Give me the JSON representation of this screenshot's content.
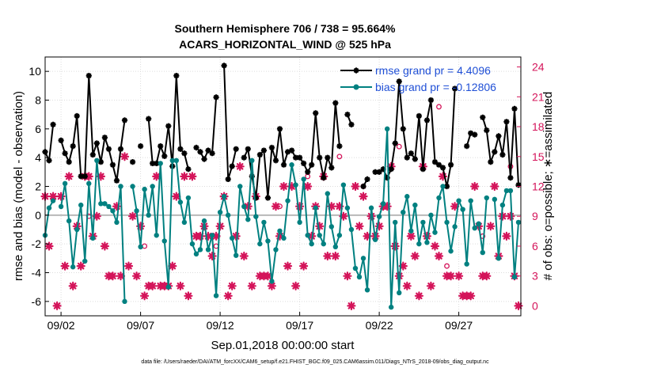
{
  "chart_data": {
    "type": "line",
    "title_line1": "Southern Hemisphere 706 / 738 = 95.664%",
    "title_line2": "ACARS_HORIZONTAL_WIND @ 525 hPa",
    "xlabel": "Sep.01,2018 00:00:00 start",
    "ylabel": "rmse and bias (model - observation)",
    "ylabel_right": "# of obs: o=possible; ∗=assimilated",
    "footnote": "data file: /Users/raeder/DAI/ATM_forcXX/CAM6_setup/f.e21.FHIST_BGC.f09_025.CAM6assim.011/Diags_NTrS_2018-09/obs_diag_output.nc",
    "xlim": [
      1.0,
      30.9
    ],
    "ylim": [
      -7,
      11
    ],
    "ylim_right": [
      -1,
      25
    ],
    "x_ticks": [
      2,
      7,
      12,
      17,
      22,
      27
    ],
    "x_tick_labels": [
      "09/02",
      "09/07",
      "09/12",
      "09/17",
      "09/22",
      "09/27"
    ],
    "y_ticks": [
      -6,
      -4,
      -2,
      0,
      2,
      4,
      6,
      8,
      10
    ],
    "y_tick_labels": [
      "-6",
      "-4",
      "-2",
      "0",
      "2",
      "4",
      "6",
      "8",
      "10"
    ],
    "y2_ticks": [
      0,
      3,
      6,
      9,
      12,
      15,
      18,
      21,
      24
    ],
    "y2_tick_labels": [
      "0",
      "3",
      "6",
      "9",
      "12",
      "15",
      "18",
      "21",
      "24"
    ],
    "zero_line": 0,
    "grid": true,
    "legend_position": "top-right",
    "colors": {
      "rmse": "#000000",
      "bias": "#008080",
      "counts": "#d4145a",
      "legend_text": "#1f4fd6",
      "zero_line": "#b8b8b8",
      "grid": "#dcdcdc"
    },
    "series": [
      {
        "name": "rmse grand pr = 4.4096",
        "color": "#000000",
        "marker": "star",
        "x": [
          1.0,
          1.25,
          1.5,
          1.75,
          2.0,
          2.25,
          2.5,
          2.75,
          3.0,
          3.25,
          3.5,
          3.75,
          4.0,
          4.25,
          4.5,
          4.75,
          5.0,
          5.25,
          5.5,
          5.75,
          6.0,
          6.25,
          6.5,
          6.75,
          7.0,
          7.25,
          7.5,
          7.75,
          8.0,
          8.25,
          8.5,
          8.75,
          9.0,
          9.25,
          9.5,
          9.75,
          10.0,
          10.25,
          10.5,
          10.75,
          11.0,
          11.25,
          11.5,
          11.75,
          12.0,
          12.25,
          12.5,
          12.75,
          13.0,
          13.25,
          13.5,
          13.75,
          14.0,
          14.25,
          14.5,
          14.75,
          15.0,
          15.25,
          15.5,
          15.75,
          16.0,
          16.25,
          16.5,
          16.75,
          17.0,
          17.25,
          17.5,
          17.75,
          18.0,
          18.25,
          18.5,
          18.75,
          19.0,
          19.25,
          19.5,
          19.75,
          20.0,
          20.25,
          20.5,
          20.75,
          21.0,
          21.25,
          21.5,
          21.75,
          22.0,
          22.25,
          22.5,
          22.75,
          23.0,
          23.25,
          23.5,
          23.75,
          24.0,
          24.25,
          24.5,
          24.75,
          25.0,
          25.25,
          25.5,
          25.75,
          26.0,
          26.25,
          26.5,
          26.75,
          27.0,
          27.25,
          27.5,
          27.75,
          28.0,
          28.25,
          28.5,
          28.75,
          29.0,
          29.25,
          29.5,
          29.75,
          30.0,
          30.25,
          30.5,
          30.75
        ],
        "values": [
          4.4,
          3.8,
          6.3,
          null,
          5.2,
          4.3,
          3.7,
          4.8,
          6.9,
          2.7,
          2.7,
          9.7,
          4.2,
          5.0,
          3.7,
          5.4,
          4.6,
          3.5,
          2.4,
          4.6,
          6.6,
          null,
          3.7,
          null,
          4.8,
          null,
          6.7,
          3.6,
          3.6,
          4.8,
          4.1,
          6.2,
          3.4,
          9.7,
          4.6,
          4.3,
          3.2,
          null,
          4.7,
          4.4,
          3.9,
          4.5,
          4.3,
          8.2,
          null,
          10.4,
          2.5,
          3.4,
          4.6,
          null,
          4.0,
          4.6,
          2.7,
          1.2,
          4.2,
          4.5,
          1.2,
          4.7,
          3.8,
          6.0,
          3.5,
          4.4,
          4.5,
          4.0,
          4.0,
          3.6,
          3.0,
          3.5,
          7.1,
          4.0,
          2.6,
          4.0,
          3.3,
          7.8,
          4.8,
          null,
          7.0,
          6.3,
          null,
          null,
          2.0,
          2.5,
          null,
          3.0,
          3.0,
          3.2,
          2.6,
          3.2,
          5.0,
          9.3,
          6.0,
          4.0,
          4.3,
          3.9,
          6.9,
          3.2,
          6.6,
          8.0,
          3.7,
          3.5,
          3.3,
          2.0,
          3.5,
          8.8,
          null,
          null,
          4.8,
          5.7,
          5.6,
          null,
          6.8,
          5.9,
          3.7,
          4.4,
          5.5,
          4.2,
          6.5,
          2.6,
          7.4,
          2.1
        ]
      },
      {
        "name": "bias grand pr = -0.12806",
        "color": "#008080",
        "marker": "dot",
        "x": [
          1.0,
          1.25,
          1.5,
          1.75,
          2.0,
          2.25,
          2.5,
          2.75,
          3.0,
          3.25,
          3.5,
          3.75,
          4.0,
          4.25,
          4.5,
          4.75,
          5.0,
          5.25,
          5.5,
          5.75,
          6.0,
          6.25,
          6.5,
          6.75,
          7.0,
          7.25,
          7.5,
          7.75,
          8.0,
          8.25,
          8.5,
          8.75,
          9.0,
          9.25,
          9.5,
          9.75,
          10.0,
          10.25,
          10.5,
          10.75,
          11.0,
          11.25,
          11.5,
          11.75,
          12.0,
          12.25,
          12.5,
          12.75,
          13.0,
          13.25,
          13.5,
          13.75,
          14.0,
          14.25,
          14.5,
          14.75,
          15.0,
          15.25,
          15.5,
          15.75,
          16.0,
          16.25,
          16.5,
          16.75,
          17.0,
          17.25,
          17.5,
          17.75,
          18.0,
          18.25,
          18.5,
          18.75,
          19.0,
          19.25,
          19.5,
          19.75,
          20.0,
          20.25,
          20.5,
          20.75,
          21.0,
          21.25,
          21.5,
          21.75,
          22.0,
          22.25,
          22.5,
          22.75,
          23.0,
          23.25,
          23.5,
          23.75,
          24.0,
          24.25,
          24.5,
          24.75,
          25.0,
          25.25,
          25.5,
          25.75,
          26.0,
          26.25,
          26.5,
          26.75,
          27.0,
          27.25,
          27.5,
          27.75,
          28.0,
          28.25,
          28.5,
          28.75,
          29.0,
          29.25,
          29.5,
          29.75,
          30.0,
          30.25,
          30.5,
          30.75
        ],
        "values": [
          -1.4,
          0.5,
          1.0,
          null,
          0.6,
          2.2,
          -0.4,
          -3.6,
          -1.0,
          0.7,
          -3.2,
          2.2,
          -1.6,
          3.8,
          0.8,
          0.8,
          0.6,
          0.3,
          -0.5,
          2.0,
          -6.0,
          null,
          2.0,
          0.3,
          -2.2,
          1.8,
          0.0,
          2.0,
          -1.4,
          3.6,
          -1.8,
          -5.0,
          3.8,
          3.8,
          0.9,
          -0.5,
          1.2,
          -2.0,
          -2.7,
          -2.4,
          -0.4,
          -2.4,
          -1.4,
          -5.6,
          0.2,
          1.3,
          0.0,
          -1.6,
          -2.8,
          2.0,
          0.6,
          -0.3,
          3.8,
          -0.1,
          -2.0,
          -0.5,
          -1.8,
          -4.6,
          -2.4,
          -1.1,
          -1.6,
          1.0,
          3.5,
          2.1,
          -0.5,
          2.5,
          -1.4,
          -2.0,
          0.5,
          -1.4,
          -2.0,
          1.5,
          -0.8,
          -2.2,
          -1.4,
          2.1,
          0.5,
          -1.0,
          -3.7,
          -4.3,
          -3.0,
          -5.2,
          0.5,
          -1.7,
          -0.1,
          0.8,
          6.0,
          -6.4,
          -0.5,
          -5.4,
          0.2,
          1.3,
          -1.1,
          0.7,
          -2.0,
          -0.5,
          -1.9,
          0.0,
          -1.2,
          1.2,
          2.0,
          -0.5,
          -2.5,
          -0.8,
          1.0,
          0.4,
          -3.4,
          1.0,
          -0.9,
          -0.6,
          -2.6,
          1.2,
          null,
          1.1,
          -3.0,
          0.7,
          1.7,
          1.7,
          -4.3,
          -0.5
        ]
      }
    ],
    "counts": {
      "name": "# of obs",
      "color": "#d4145a",
      "assimilated": {
        "x": [
          1.0,
          1.25,
          1.5,
          1.75,
          2.0,
          2.25,
          2.5,
          2.75,
          3.0,
          3.25,
          3.5,
          3.75,
          4.0,
          4.25,
          4.5,
          4.75,
          5.0,
          5.25,
          5.5,
          5.75,
          6.0,
          6.25,
          6.5,
          6.75,
          7.0,
          7.25,
          7.5,
          7.75,
          8.0,
          8.25,
          8.5,
          8.75,
          9.0,
          9.25,
          9.5,
          9.75,
          10.0,
          10.25,
          10.5,
          10.75,
          11.0,
          11.25,
          11.5,
          11.75,
          12.0,
          12.25,
          12.5,
          12.75,
          13.0,
          13.25,
          13.5,
          13.75,
          14.0,
          14.25,
          14.5,
          14.75,
          15.0,
          15.25,
          15.5,
          15.75,
          16.0,
          16.25,
          16.5,
          16.75,
          17.0,
          17.25,
          17.5,
          17.75,
          18.0,
          18.25,
          18.5,
          18.75,
          19.0,
          19.25,
          19.5,
          19.75,
          20.0,
          20.25,
          20.5,
          20.75,
          21.0,
          21.25,
          21.5,
          21.75,
          22.0,
          22.25,
          22.5,
          22.75,
          23.0,
          23.25,
          23.5,
          23.75,
          24.0,
          24.25,
          24.5,
          24.75,
          25.0,
          25.25,
          25.5,
          25.75,
          26.0,
          26.25,
          26.5,
          26.75,
          27.0,
          27.25,
          27.5,
          27.75,
          28.0,
          28.25,
          28.5,
          28.75,
          29.0,
          29.25,
          29.5,
          29.75,
          30.0,
          30.25,
          30.5,
          30.75
        ],
        "values": [
          11,
          6,
          11,
          0,
          11,
          4,
          13,
          2,
          8,
          4,
          13,
          13,
          7,
          9,
          13,
          6,
          3,
          3,
          10,
          3,
          15,
          4,
          9,
          3,
          8,
          1,
          2,
          2,
          13,
          2,
          2,
          2,
          4,
          11,
          2,
          13,
          1,
          13,
          7,
          7,
          8,
          7,
          5,
          7,
          8,
          11,
          1,
          2,
          7,
          14,
          5,
          10,
          2,
          11,
          3,
          3,
          3,
          2,
          10,
          7,
          12,
          4,
          12,
          2,
          10,
          4,
          12,
          7,
          10,
          8,
          13,
          5,
          10,
          5,
          10,
          9,
          3,
          0,
          12,
          8,
          11,
          7,
          9,
          7,
          8,
          10,
          10,
          14,
          6,
          3,
          4,
          2,
          7,
          5,
          1,
          14,
          7,
          2,
          6,
          5,
          13,
          3,
          3,
          10,
          3,
          1,
          1,
          1,
          12,
          8,
          3,
          3,
          8,
          12,
          5,
          9,
          7,
          9,
          3,
          0
        ]
      },
      "possible": {
        "x": [
          3.75,
          7.25,
          11.75,
          15.75,
          17.5,
          19.5,
          21.0,
          23.25,
          25.75,
          26.25,
          28.5,
          30.25
        ],
        "values": [
          9,
          6,
          6,
          10,
          13,
          15,
          12,
          16,
          20,
          4,
          7,
          14
        ]
      }
    },
    "legend": [
      {
        "label": "rmse grand pr = 4.4096",
        "marker": "star"
      },
      {
        "label": "bias grand pr = -0.12806",
        "marker": "dot"
      }
    ]
  }
}
